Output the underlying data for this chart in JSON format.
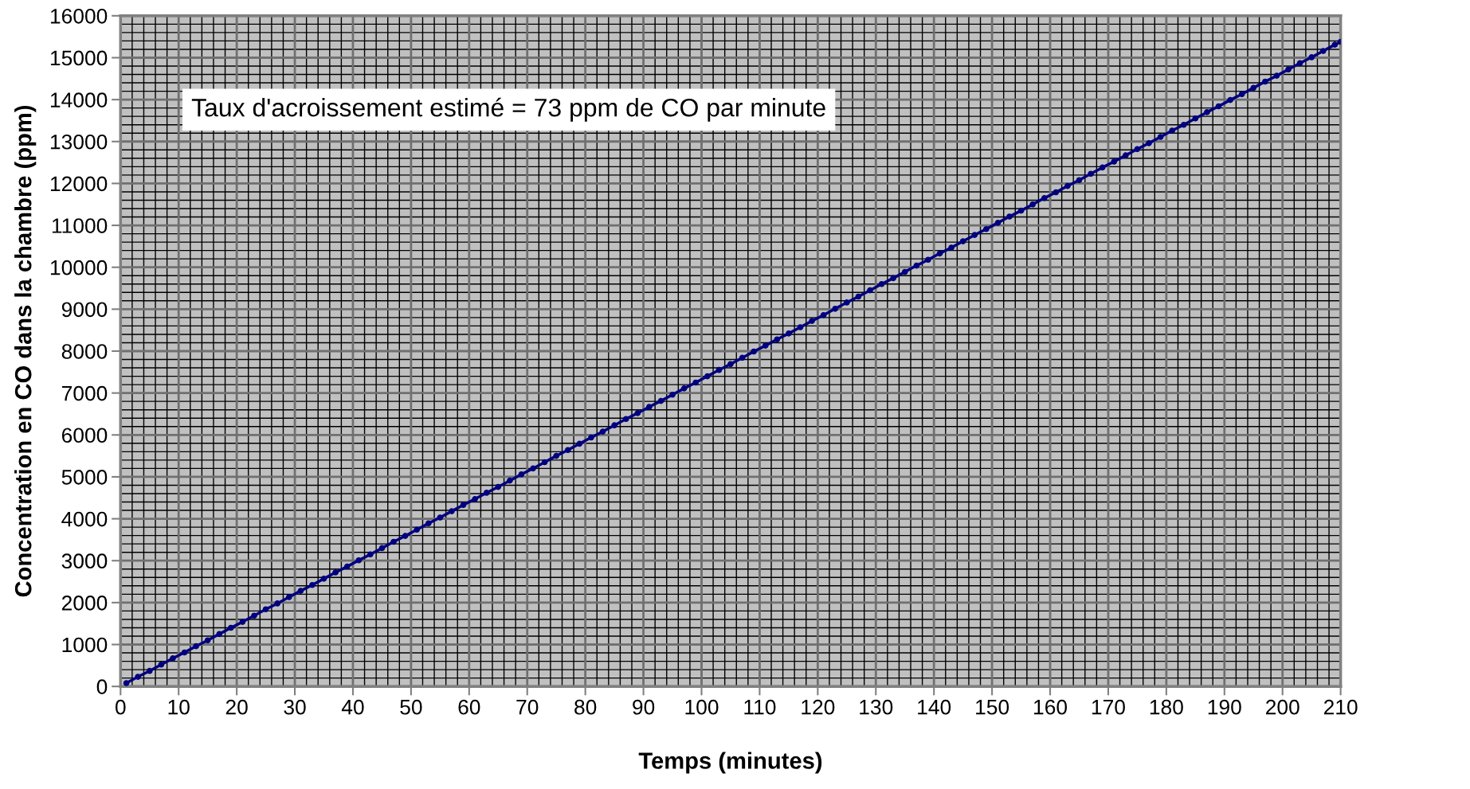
{
  "chart_data": {
    "type": "line",
    "xlabel": "Temps (minutes)",
    "ylabel": "Concentration en CO dans la chambre (ppm)",
    "annotations": [
      "Taux d'acroissement estimé = 73 ppm de CO par minute"
    ],
    "x": [
      1,
      3,
      5,
      7,
      9,
      11,
      13,
      15,
      17,
      19,
      21,
      23,
      25,
      27,
      29,
      31,
      33,
      35,
      37,
      39,
      41,
      43,
      45,
      47,
      49,
      51,
      53,
      55,
      57,
      59,
      61,
      63,
      65,
      67,
      69,
      71,
      73,
      75,
      77,
      79,
      81,
      83,
      85,
      87,
      89,
      91,
      93,
      95,
      97,
      99,
      101,
      103,
      105,
      107,
      109,
      111,
      113,
      115,
      117,
      119,
      121,
      123,
      125,
      127,
      129,
      131,
      133,
      135,
      137,
      139,
      141,
      143,
      145,
      147,
      149,
      151,
      153,
      155,
      157,
      159,
      161,
      163,
      165,
      167,
      169,
      171,
      173,
      175,
      177,
      179,
      181,
      183,
      185,
      187,
      189,
      191,
      193,
      195,
      197,
      199,
      201,
      203,
      205,
      207,
      209,
      210
    ],
    "series": [
      {
        "color": "#000080",
        "values": [
          80,
          230,
          370,
          520,
          670,
          810,
          960,
          1100,
          1250,
          1400,
          1540,
          1690,
          1840,
          1980,
          2130,
          2280,
          2420,
          2570,
          2720,
          2860,
          3010,
          3150,
          3300,
          3450,
          3590,
          3740,
          3890,
          4030,
          4180,
          4330,
          4470,
          4620,
          4760,
          4910,
          5060,
          5200,
          5350,
          5500,
          5640,
          5790,
          5940,
          6080,
          6230,
          6380,
          6520,
          6670,
          6810,
          6960,
          7110,
          7250,
          7400,
          7550,
          7690,
          7840,
          7990,
          8130,
          8280,
          8420,
          8570,
          8720,
          8860,
          9010,
          9160,
          9300,
          9450,
          9600,
          9740,
          9890,
          10040,
          10180,
          10330,
          10470,
          10620,
          10770,
          10910,
          11060,
          11210,
          11350,
          11500,
          11650,
          11790,
          11940,
          12080,
          12230,
          12380,
          12520,
          12670,
          12820,
          12960,
          13110,
          13260,
          13400,
          13550,
          13700,
          13840,
          13990,
          14130,
          14280,
          14430,
          14570,
          14720,
          14870,
          15010,
          15160,
          15310,
          15380
        ]
      }
    ],
    "xlim": [
      0,
      210
    ],
    "xticks": [
      0,
      10,
      20,
      30,
      40,
      50,
      60,
      70,
      80,
      90,
      100,
      110,
      120,
      130,
      140,
      150,
      160,
      170,
      180,
      190,
      200,
      210
    ],
    "ylim": [
      0,
      16000
    ],
    "yticks": [
      0,
      1000,
      2000,
      3000,
      4000,
      5000,
      6000,
      7000,
      8000,
      9000,
      10000,
      11000,
      12000,
      13000,
      14000,
      15000,
      16000
    ],
    "grid": true,
    "marker": "circle",
    "line_style": "solid"
  }
}
